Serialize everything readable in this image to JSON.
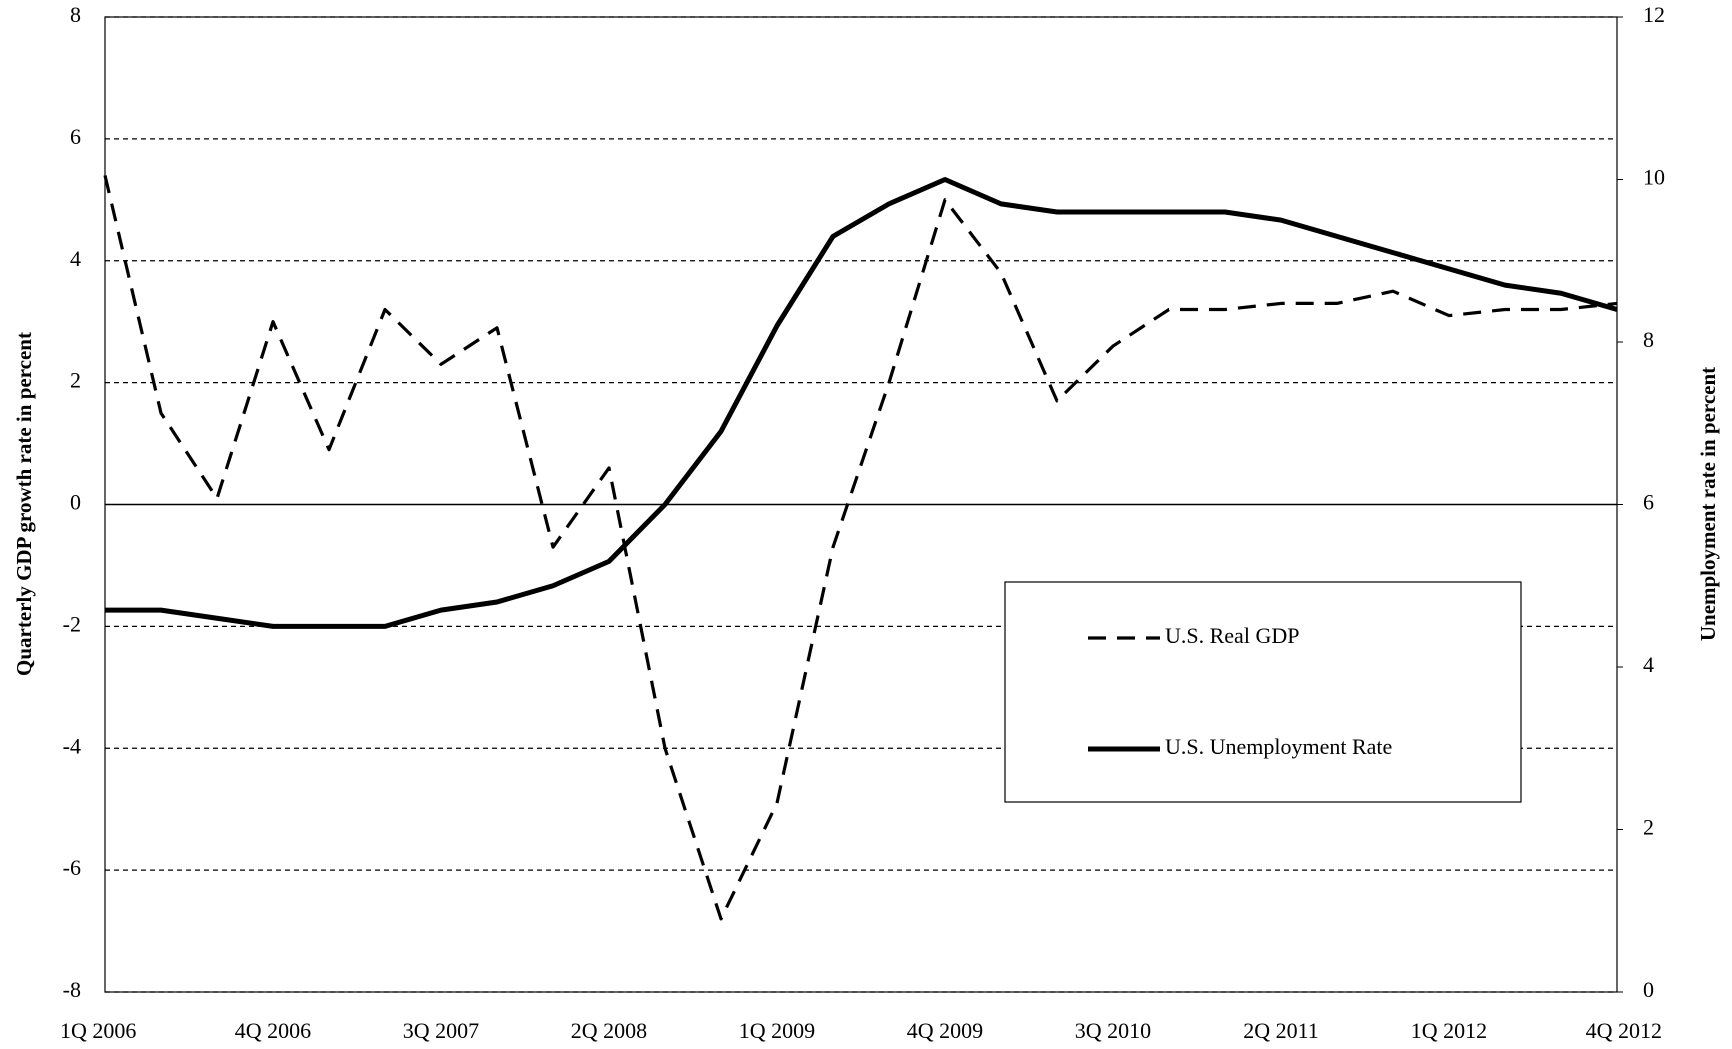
{
  "chart_data": {
    "type": "line",
    "categories": [
      "1Q 2006",
      null,
      null,
      "4Q 2006",
      null,
      null,
      "3Q 2007",
      null,
      null,
      "2Q 2008",
      null,
      null,
      "1Q 2009",
      null,
      null,
      "4Q 2009",
      null,
      null,
      "3Q 2010",
      null,
      null,
      "2Q 2011",
      null,
      null,
      "1Q 2012",
      null,
      null,
      "4Q 2012"
    ],
    "series": [
      {
        "name": "U.S. Real GDP",
        "color": "#000000",
        "dash": true,
        "values": [
          5.4,
          1.5,
          0.1,
          3.0,
          0.9,
          3.2,
          2.3,
          2.9,
          -0.7,
          0.6,
          -4.0,
          -6.8,
          -4.9,
          -0.7,
          2.0,
          5.0,
          3.8,
          1.7,
          2.6,
          3.2,
          3.2,
          3.3,
          3.3,
          3.5,
          3.1,
          3.2,
          3.2,
          3.3
        ]
      },
      {
        "name": "U.S. Unemployment Rate",
        "color": "#000000",
        "dash": false,
        "axis": "y2",
        "values": [
          4.7,
          4.7,
          4.6,
          4.5,
          4.5,
          4.5,
          4.7,
          4.8,
          5.0,
          5.3,
          6.0,
          6.9,
          8.2,
          9.3,
          9.7,
          10.0,
          9.7,
          9.6,
          9.6,
          9.6,
          9.6,
          9.5,
          9.3,
          9.1,
          8.9,
          8.7,
          8.6,
          8.4
        ]
      }
    ],
    "ylabel": "Quarterly GDP growth rate in percent",
    "y2label": "Unemployment rate in percent",
    "ylim": [
      -8,
      8
    ],
    "yticks": [
      -8,
      -6,
      -4,
      -2,
      0,
      2,
      4,
      6,
      8
    ],
    "y2lim": [
      0,
      12
    ],
    "y2ticks": [
      0,
      2,
      4,
      6,
      8,
      10,
      12
    ],
    "grid": true,
    "legend": "lower right"
  }
}
